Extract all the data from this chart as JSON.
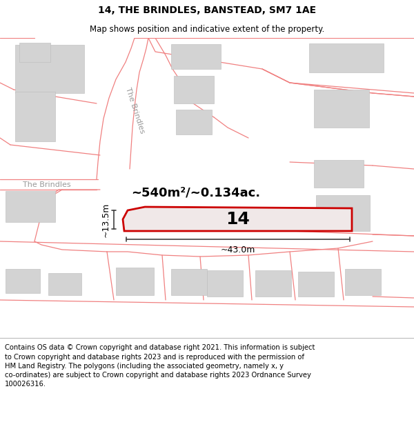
{
  "title": "14, THE BRINDLES, BANSTEAD, SM7 1AE",
  "subtitle": "Map shows position and indicative extent of the property.",
  "footer": "Contains OS data © Crown copyright and database right 2021. This information is subject to Crown copyright and database rights 2023 and is reproduced with the permission of HM Land Registry. The polygons (including the associated geometry, namely x, y co-ordinates) are subject to Crown copyright and database rights 2023 Ordnance Survey 100026316.",
  "area_label": "~540m²/~0.134ac.",
  "width_label": "~43.0m",
  "height_label": "~13.5m",
  "plot_number": "14",
  "street_label_diagonal": "The Brindles",
  "street_label_horizontal": "The Brindles",
  "bg": "#ffffff",
  "map_bg": "#ffffff",
  "road_line_color": "#f08080",
  "building_fill": "#d3d3d3",
  "building_edge": "#d3d3d3",
  "plot_fill": "#f0e8e8",
  "plot_edge": "#cc0000",
  "dim_color": "#404040",
  "title_fontsize": 10,
  "subtitle_fontsize": 8.5,
  "footer_fontsize": 7.2,
  "area_fontsize": 13,
  "plot_num_fontsize": 18,
  "dim_fontsize": 9,
  "street_fontsize": 8
}
